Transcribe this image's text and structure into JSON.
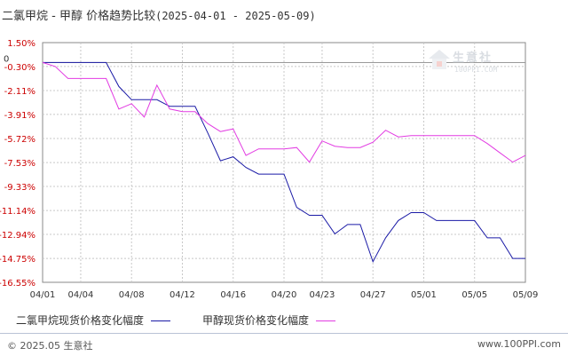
{
  "title": {
    "main": "二氯甲烷 - 甲醇 价格趋势比较",
    "date_range": "(2025-04-01 - 2025-05-09)"
  },
  "watermark": {
    "text": "生意社",
    "sub": "100PPI.COM"
  },
  "footer": {
    "copyright": "© 2025.05 生意社",
    "site": "www.100PPI.com"
  },
  "colors": {
    "series1": "#1a1aa6",
    "series2": "#e23be2",
    "grid": "#c8c8c8",
    "axis": "#888888",
    "ytick": "#cc0000"
  },
  "chart_data": {
    "type": "line",
    "title": "二氯甲烷 - 甲醇 价格趋势比较",
    "xlabel": "",
    "ylabel": "",
    "ylim": [
      -16.55,
      1.5
    ],
    "y_ticks": [
      "1.50%",
      "-0.30%",
      "-2.11%",
      "-3.91%",
      "-5.72%",
      "-7.53%",
      "-9.33%",
      "-11.14%",
      "-12.94%",
      "-14.75%",
      "-16.55%"
    ],
    "y_tick_values": [
      1.5,
      -0.3,
      -2.11,
      -3.91,
      -5.72,
      -7.53,
      -9.33,
      -11.14,
      -12.94,
      -14.75,
      -16.55
    ],
    "zero_label": "0",
    "x_ticks": [
      "04/01",
      "04/04",
      "04/08",
      "04/12",
      "04/16",
      "04/20",
      "04/23",
      "04/27",
      "05/01",
      "05/05",
      "05/09"
    ],
    "x_tick_days": [
      0,
      3,
      7,
      11,
      15,
      19,
      22,
      26,
      30,
      34,
      38
    ],
    "x_range_days": [
      0,
      38
    ],
    "grid": true,
    "legend_position": "bottom",
    "series": [
      {
        "name": "二氯甲烷现货价格变化幅度",
        "color": "#1a1aa6",
        "x": [
          "04/01",
          "04/02",
          "04/03",
          "04/04",
          "04/05",
          "04/06",
          "04/07",
          "04/08",
          "04/09",
          "04/10",
          "04/11",
          "04/12",
          "04/13",
          "04/14",
          "04/15",
          "04/16",
          "04/17",
          "04/18",
          "04/19",
          "04/20",
          "04/21",
          "04/22",
          "04/23",
          "04/24",
          "04/25",
          "04/26",
          "04/27",
          "04/28",
          "04/29",
          "04/30",
          "05/01",
          "05/02",
          "05/03",
          "05/04",
          "05/05",
          "05/06",
          "05/07",
          "05/08",
          "05/09"
        ],
        "y": [
          0,
          0,
          0,
          0,
          0,
          0,
          -1.8,
          -2.8,
          -2.8,
          -2.8,
          -3.3,
          -3.3,
          -3.3,
          -5.3,
          -7.4,
          -7.1,
          -7.9,
          -8.4,
          -8.4,
          -8.4,
          -10.9,
          -11.5,
          -11.5,
          -12.9,
          -12.2,
          -12.2,
          -15.0,
          -13.2,
          -11.9,
          -11.3,
          -11.3,
          -11.9,
          -11.9,
          -11.9,
          -11.9,
          -13.2,
          -13.2,
          -14.75,
          -14.75
        ]
      },
      {
        "name": "甲醇现货价格变化幅度",
        "color": "#e23be2",
        "x": [
          "04/01",
          "04/02",
          "04/03",
          "04/04",
          "04/05",
          "04/06",
          "04/07",
          "04/08",
          "04/09",
          "04/10",
          "04/11",
          "04/12",
          "04/13",
          "04/14",
          "04/15",
          "04/16",
          "04/17",
          "04/18",
          "04/19",
          "04/20",
          "04/21",
          "04/22",
          "04/23",
          "04/24",
          "04/25",
          "04/26",
          "04/27",
          "04/28",
          "04/29",
          "04/30",
          "05/01",
          "05/02",
          "05/03",
          "05/04",
          "05/05",
          "05/06",
          "05/07",
          "05/08",
          "05/09"
        ],
        "y": [
          0,
          -0.3,
          -1.2,
          -1.2,
          -1.2,
          -1.2,
          -3.5,
          -3.1,
          -4.1,
          -1.7,
          -3.5,
          -3.7,
          -3.7,
          -4.6,
          -5.2,
          -5.0,
          -7.0,
          -6.5,
          -6.5,
          -6.5,
          -6.4,
          -7.5,
          -5.9,
          -6.3,
          -6.4,
          -6.4,
          -6.0,
          -5.1,
          -5.6,
          -5.5,
          -5.5,
          -5.5,
          -5.5,
          -5.5,
          -5.5,
          -6.1,
          -6.8,
          -7.5,
          -7.0
        ]
      }
    ]
  }
}
